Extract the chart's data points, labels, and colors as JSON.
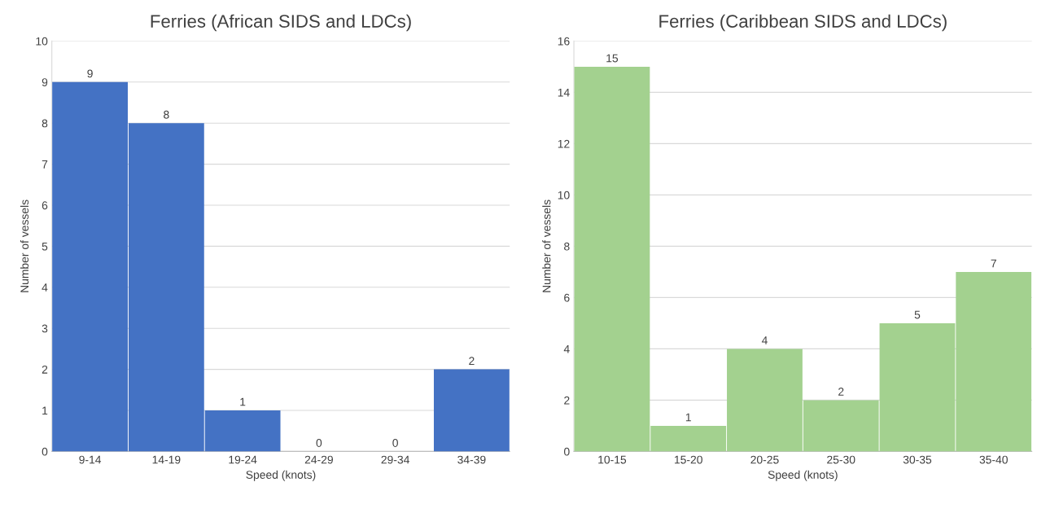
{
  "chart_data": [
    {
      "type": "bar",
      "title": "Ferries (African SIDS and LDCs)",
      "xlabel": "Speed (knots)",
      "ylabel": "Number of vessels",
      "categories": [
        "9-14",
        "14-19",
        "19-24",
        "24-29",
        "29-34",
        "34-39"
      ],
      "values": [
        9,
        8,
        1,
        0,
        0,
        2
      ],
      "color": "#4472c4",
      "ylim": [
        0,
        10
      ],
      "yticks": [
        0,
        1,
        2,
        3,
        4,
        5,
        6,
        7,
        8,
        9,
        10
      ],
      "grid": "y",
      "data_labels": true
    },
    {
      "type": "bar",
      "title": "Ferries (Caribbean SIDS and LDCs)",
      "xlabel": "Speed (knots)",
      "ylabel": "Number of vessels",
      "categories": [
        "10-15",
        "15-20",
        "20-25",
        "25-30",
        "30-35",
        "35-40"
      ],
      "values": [
        15,
        1,
        4,
        2,
        5,
        7
      ],
      "color": "#a3d18f",
      "ylim": [
        0,
        16
      ],
      "yticks": [
        0,
        2,
        4,
        6,
        8,
        10,
        12,
        14,
        16
      ],
      "grid": "y",
      "data_labels": true
    }
  ]
}
